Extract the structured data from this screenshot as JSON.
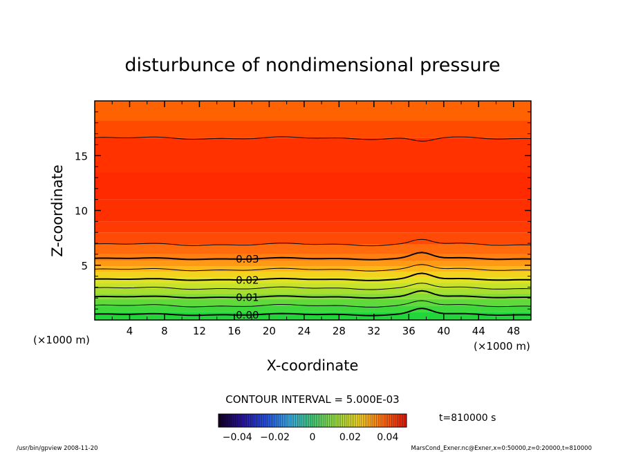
{
  "chart_data": {
    "type": "contour",
    "title": "disturbunce of nondimensional pressure",
    "xlabel": "X-coordinate",
    "ylabel": "Z-coordinate",
    "x_unit": "(×1000 m)",
    "y_unit": "(×1000 m)",
    "xlim": [
      0,
      50
    ],
    "ylim": [
      0,
      20
    ],
    "x_ticks": [
      4,
      8,
      12,
      16,
      20,
      24,
      28,
      32,
      36,
      40,
      44,
      48
    ],
    "y_ticks": [
      5,
      10,
      15
    ],
    "contour_interval_text": "CONTOUR INTERVAL = 5.000E-03",
    "time_label": "t=810000 s",
    "contour_labels": [
      {
        "text": "0.03",
        "value": 0.03,
        "x": 17.5,
        "z": 5.6
      },
      {
        "text": "0.02",
        "value": 0.02,
        "x": 17.5,
        "z": 3.7
      },
      {
        "text": "0.01",
        "value": 0.01,
        "x": 17.5,
        "z": 2.1
      },
      {
        "text": "0.00",
        "value": 0.0,
        "x": 17.5,
        "z": 0.5
      }
    ],
    "contour_levels_z": [
      {
        "value": 0.005,
        "z": 1.3
      },
      {
        "value": 0.015,
        "z": 2.9
      },
      {
        "value": 0.025,
        "z": 4.6
      },
      {
        "value": 0.035,
        "z": 6.9
      },
      {
        "value": 0.04,
        "z": 16.6
      }
    ],
    "colorbar": {
      "range": [
        -0.05,
        0.05
      ],
      "ticks": [
        {
          "label": "−0.04",
          "value": -0.04
        },
        {
          "label": "−0.02",
          "value": -0.02
        },
        {
          "label": "0",
          "value": 0
        },
        {
          "label": "0.02",
          "value": 0.02
        },
        {
          "label": "0.04",
          "value": 0.04
        }
      ]
    },
    "colors": {
      "high": "#ff2a00",
      "mid": "#ff6a00",
      "low": "#18d62a"
    }
  },
  "footer": {
    "left": "/usr/bin/gpview  2008-11-20",
    "right": "MarsCond_Exner.nc@Exner,x=0:50000,z=0:20000,t=810000"
  }
}
